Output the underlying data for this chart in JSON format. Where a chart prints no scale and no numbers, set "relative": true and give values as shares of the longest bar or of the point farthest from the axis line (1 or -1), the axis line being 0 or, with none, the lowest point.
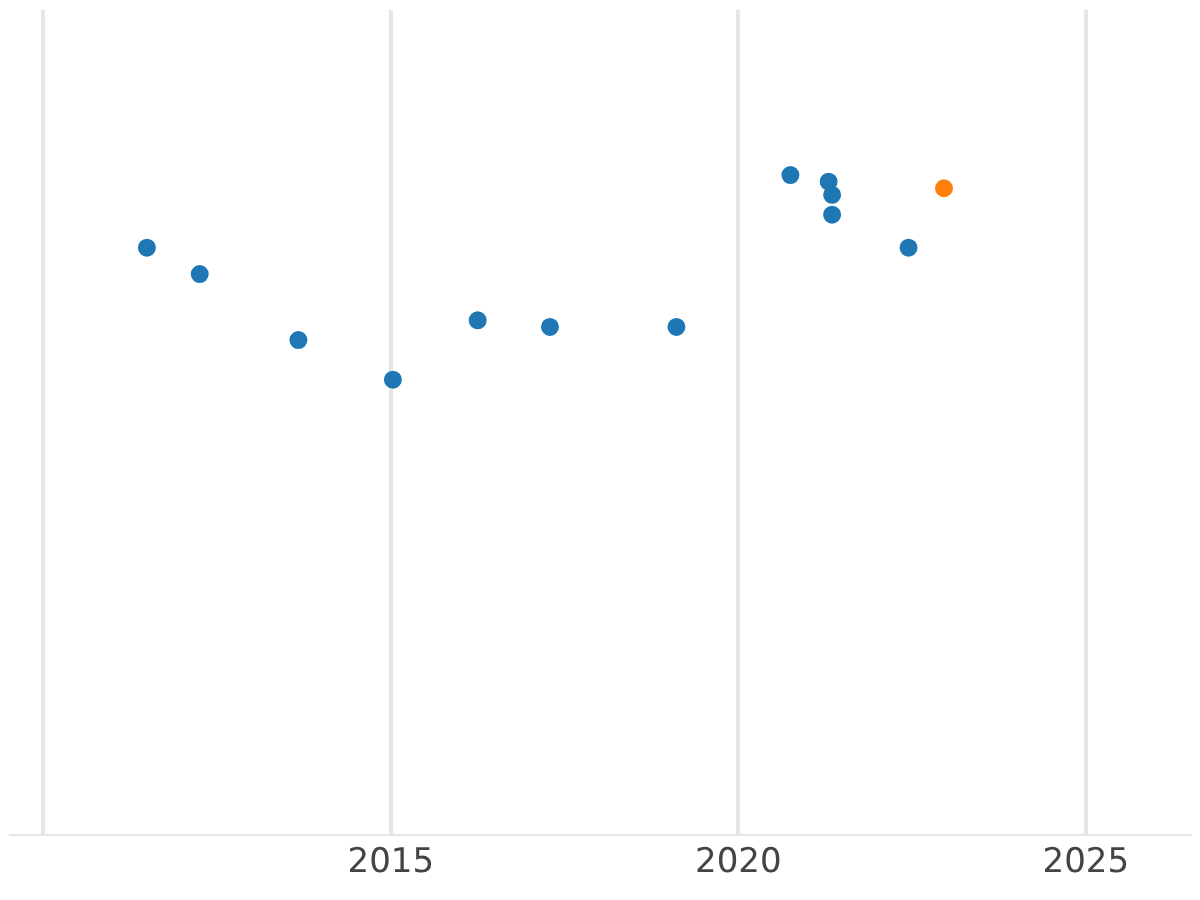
{
  "chart_data": {
    "type": "scatter",
    "relative": true,
    "grid": "x",
    "legend": false,
    "marker": "circle",
    "xlim": [
      2009.52,
      2026.5
    ],
    "xticks": [
      {
        "value": 2010,
        "label": null
      },
      2015,
      2020,
      2025
    ],
    "series": [
      {
        "color": "#1f77b4",
        "x": [
          2011.49,
          2012.25,
          2013.67,
          2015.03,
          2016.25,
          2017.29,
          2019.11,
          2020.75,
          2021.3,
          2021.35,
          2021.35,
          2022.45
        ],
        "values": [
          0.89,
          0.85,
          0.75,
          0.69,
          0.78,
          0.77,
          0.77,
          1,
          0.99,
          0.97,
          0.94,
          0.89
        ]
      },
      {
        "color": "#ff7f0e",
        "x": [
          2022.96
        ],
        "values": [
          0.98
        ]
      }
    ]
  }
}
